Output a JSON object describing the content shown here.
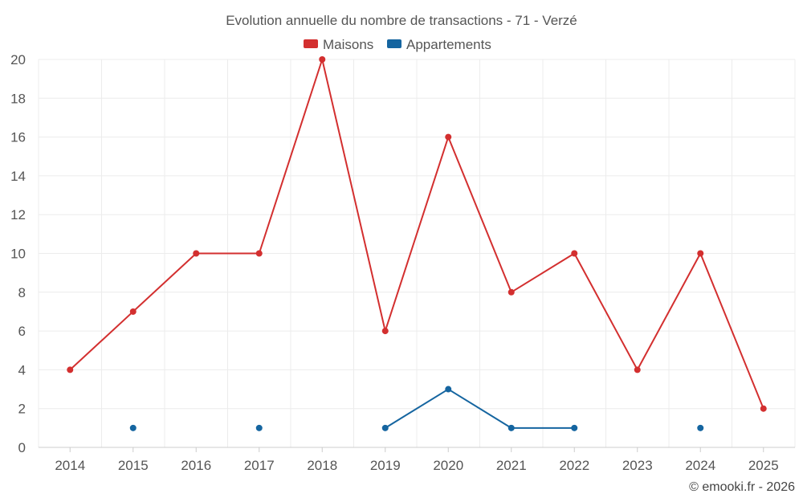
{
  "chart_data": {
    "type": "line",
    "title": "Evolution annuelle du nombre de transactions - 71 - Verzé",
    "categories": [
      "2014",
      "2015",
      "2016",
      "2017",
      "2018",
      "2019",
      "2020",
      "2021",
      "2022",
      "2023",
      "2024",
      "2025"
    ],
    "ylim": [
      0,
      20
    ],
    "yticks": [
      0,
      2,
      4,
      6,
      8,
      10,
      12,
      14,
      16,
      18,
      20
    ],
    "grid": true,
    "legend_position": "top-center",
    "series": [
      {
        "name": "Maisons",
        "color": "#d32f2f",
        "values": [
          4,
          7,
          10,
          10,
          20,
          6,
          16,
          8,
          10,
          4,
          10,
          2
        ]
      },
      {
        "name": "Appartements",
        "color": "#1565a0",
        "values": [
          null,
          1,
          null,
          1,
          null,
          1,
          3,
          1,
          1,
          null,
          1,
          null
        ]
      }
    ],
    "credit": "© emooki.fr - 2026"
  }
}
